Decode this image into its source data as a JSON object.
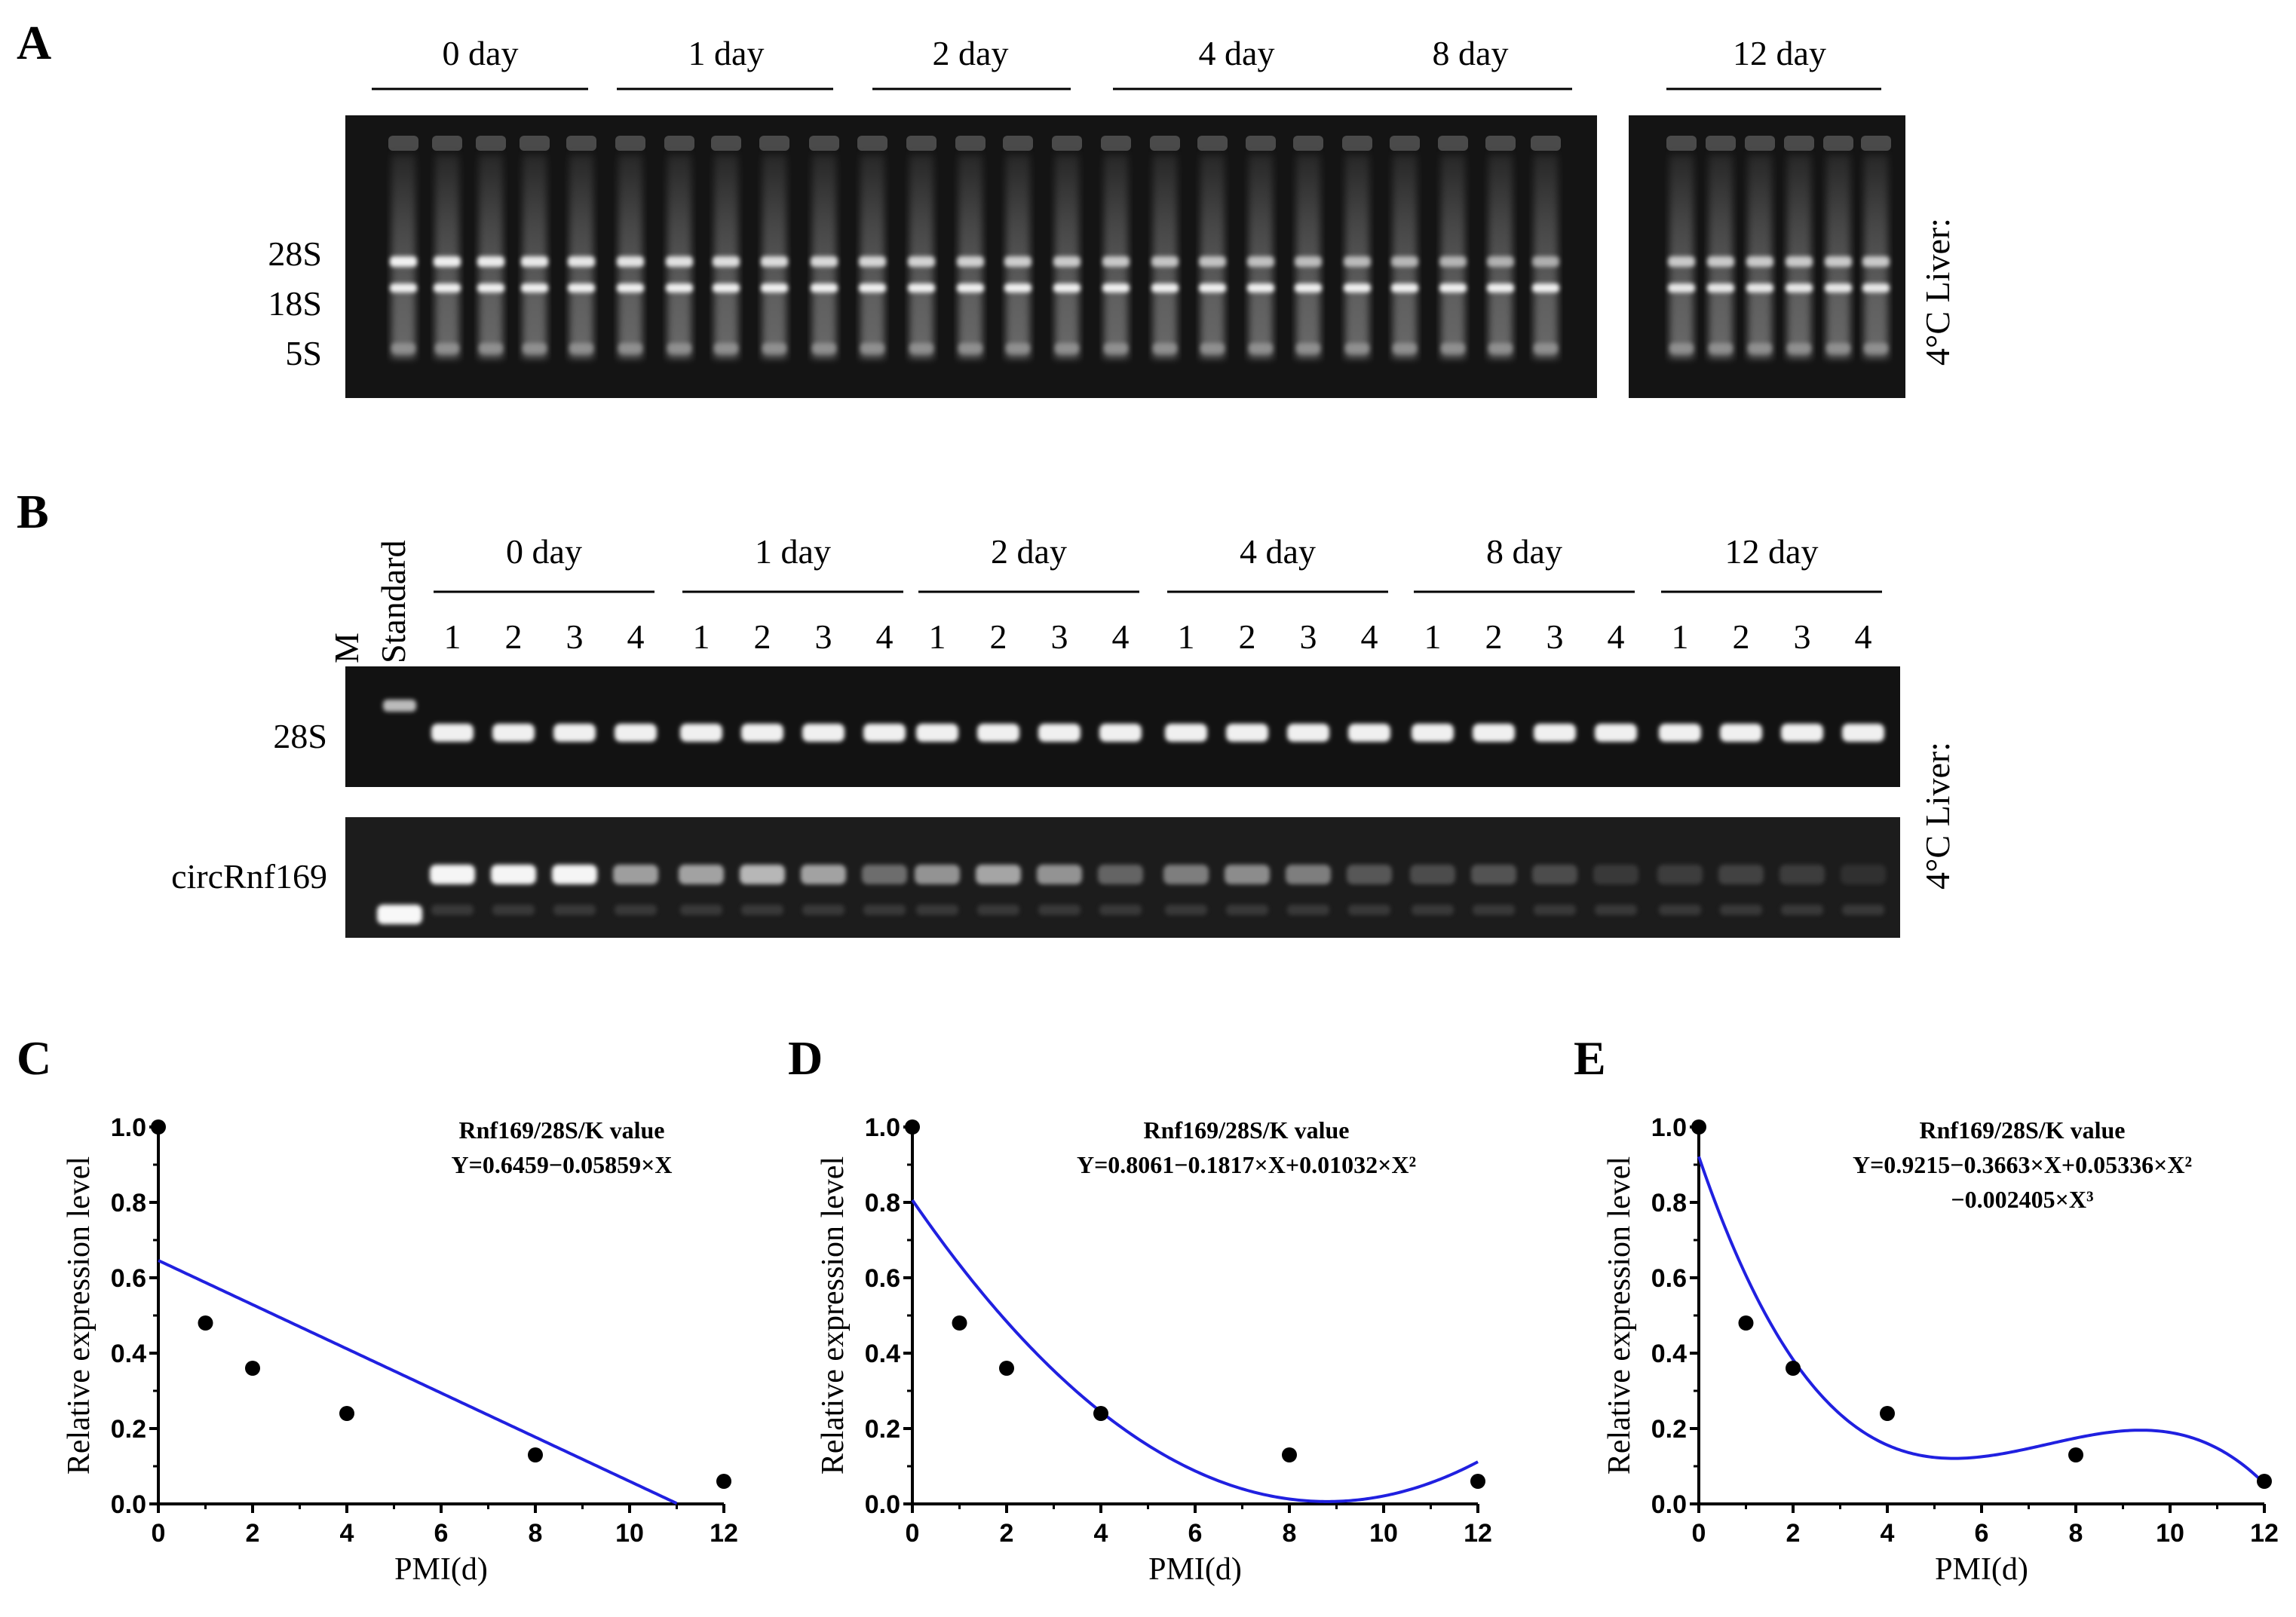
{
  "panels": {
    "a": {
      "letter": "A",
      "groups": [
        "0 day",
        "1 day",
        "2 day",
        "4 day",
        "8 day",
        "12 day"
      ],
      "band_labels": [
        "28S",
        "18S",
        "5S"
      ],
      "side_label": "4°C Liver:"
    },
    "b": {
      "letter": "B",
      "marker_label": "M",
      "standard_label": "Standard",
      "groups": [
        "0 day",
        "1 day",
        "2 day",
        "4 day",
        "8 day",
        "12 day"
      ],
      "lane_numbers": [
        "1",
        "2",
        "3",
        "4"
      ],
      "row_labels": [
        "28S",
        "circRnf169"
      ],
      "side_label": "4°C Liver:"
    }
  },
  "chart_data": [
    {
      "letter": "C",
      "type": "scatter",
      "fit": "linear",
      "coeffs": [
        0.6459,
        -0.05859
      ],
      "x": [
        0,
        1,
        2,
        4,
        8,
        12
      ],
      "y": [
        1.0,
        0.48,
        0.36,
        0.24,
        0.13,
        0.06
      ],
      "xlabel": "PMI(d)",
      "ylabel": "Relative expression level",
      "xlim": [
        0,
        12
      ],
      "ylim": [
        0,
        1.0
      ],
      "xticks": [
        "0",
        "2",
        "4",
        "6",
        "8",
        "10",
        "12"
      ],
      "yticks": [
        "0.0",
        "0.2",
        "0.4",
        "0.6",
        "0.8",
        "1.0"
      ],
      "annotation": [
        "Rnf169/28S/K value",
        "Y=0.6459−0.05859×X"
      ],
      "line_color": "#2020e0"
    },
    {
      "letter": "D",
      "type": "scatter",
      "fit": "quadratic",
      "coeffs": [
        0.8061,
        -0.1817,
        0.01032
      ],
      "x": [
        0,
        1,
        2,
        4,
        8,
        12
      ],
      "y": [
        1.0,
        0.48,
        0.36,
        0.24,
        0.13,
        0.06
      ],
      "xlabel": "PMI(d)",
      "ylabel": "Relative expression level",
      "xlim": [
        0,
        12
      ],
      "ylim": [
        0,
        1.0
      ],
      "xticks": [
        "0",
        "2",
        "4",
        "6",
        "8",
        "10",
        "12"
      ],
      "yticks": [
        "0.0",
        "0.2",
        "0.4",
        "0.6",
        "0.8",
        "1.0"
      ],
      "annotation": [
        "Rnf169/28S/K value",
        "Y=0.8061−0.1817×X+0.01032×X²"
      ],
      "line_color": "#2020e0"
    },
    {
      "letter": "E",
      "type": "scatter",
      "fit": "cubic",
      "coeffs": [
        0.9215,
        -0.3663,
        0.05336,
        -0.002405
      ],
      "x": [
        0,
        1,
        2,
        4,
        8,
        12
      ],
      "y": [
        1.0,
        0.48,
        0.36,
        0.24,
        0.13,
        0.06
      ],
      "xlabel": "PMI(d)",
      "ylabel": "Relative expression level",
      "xlim": [
        0,
        12
      ],
      "ylim": [
        0,
        1.0
      ],
      "xticks": [
        "0",
        "2",
        "4",
        "6",
        "8",
        "10",
        "12"
      ],
      "yticks": [
        "0.0",
        "0.2",
        "0.4",
        "0.6",
        "0.8",
        "1.0"
      ],
      "annotation": [
        "Rnf169/28S/K value",
        "Y=0.9215−0.3663×X+0.05336×X²",
        "−0.002405×X³"
      ],
      "line_color": "#2020e0"
    }
  ]
}
